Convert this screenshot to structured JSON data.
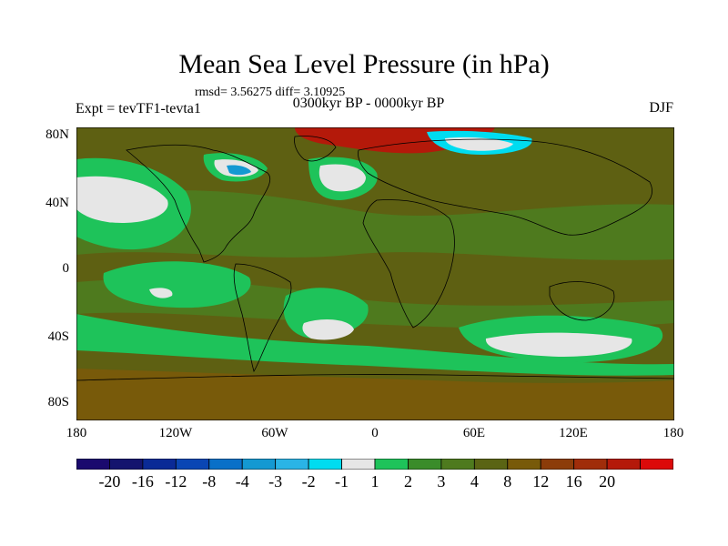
{
  "title": "Mean Sea Level Pressure (in hPa)",
  "stats": "rmsd= 3.56275 diff= 3.10925",
  "experiment": "Expt = tevTF1-tevta1",
  "period": "0300kyr BP - 0000kyr BP",
  "season": "DJF",
  "lat_labels": [
    "80N",
    "40N",
    "0",
    "40S",
    "80S"
  ],
  "lon_labels": [
    "180",
    "120W",
    "60W",
    "0",
    "60E",
    "120E",
    "180"
  ],
  "colorbar": {
    "colors": [
      "#1a0a6e",
      "#14146e",
      "#0a2a96",
      "#0a46b4",
      "#0a70c8",
      "#1499d2",
      "#2ab4e6",
      "#00dcf0",
      "#e6e6e6",
      "#1ec35a",
      "#3a8c2a",
      "#4e7a1e",
      "#5a6414",
      "#785a0a",
      "#8c3c0a",
      "#a02d0a",
      "#b4190a",
      "#dc0a0a"
    ],
    "labels": [
      "-20",
      "-16",
      "-12",
      "-8",
      "-4",
      "-3",
      "-2",
      "-1",
      "1",
      "2",
      "3",
      "4",
      "8",
      "12",
      "16",
      "20"
    ]
  },
  "map_colors": {
    "background": "#5e6012",
    "mid": "#4e7a1e",
    "green": "#1ec35a",
    "white": "#e6e6e6",
    "cyan": "#00dcf0",
    "blue": "#1499d2",
    "red": "#b4190a",
    "brown": "#785a0a",
    "dkgreen": "#3a8c2a"
  }
}
